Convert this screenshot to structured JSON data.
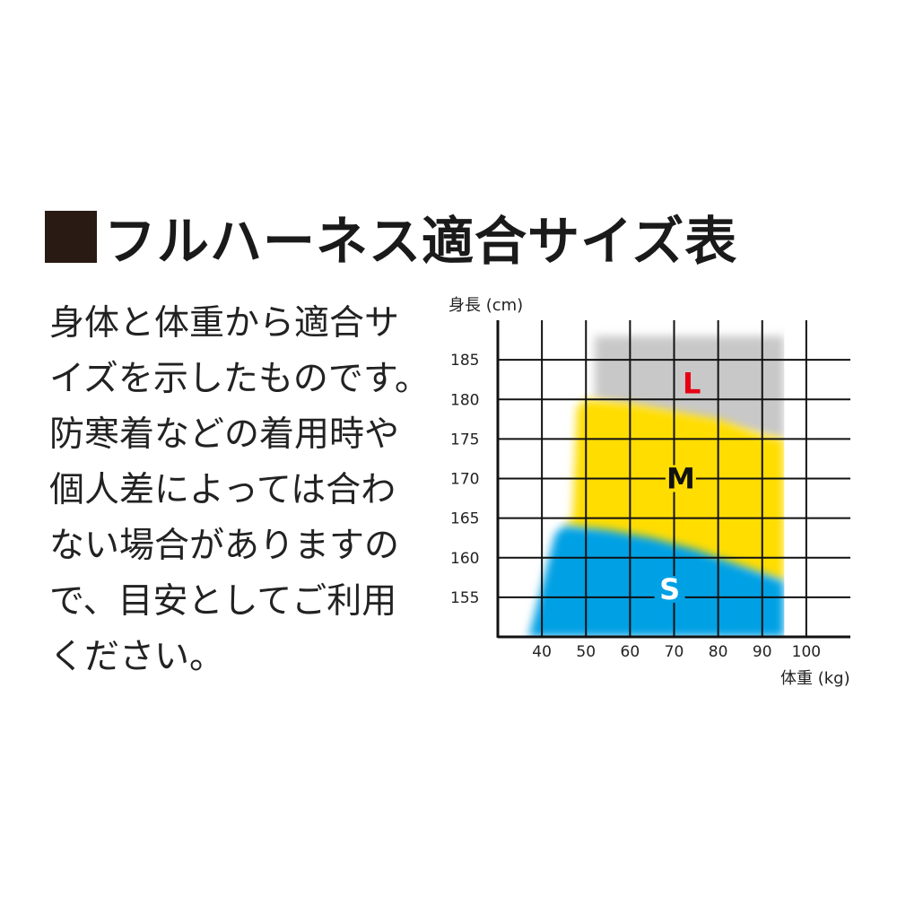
{
  "title": "フルハーネス適合サイズ表",
  "description_lines": [
    "身体と体重から適合サ",
    "イズを示したものです。",
    "防寒着などの着用時や",
    "個人差によっては合わ",
    "ない場合がありますの",
    "で、目安としてご利用",
    "ください。"
  ],
  "chart_data": {
    "type": "area",
    "xlabel": "体重 (kg)",
    "ylabel": "身長 (cm)",
    "xlim": [
      30,
      110
    ],
    "ylim": [
      150,
      190
    ],
    "x_ticks": [
      "40",
      "50",
      "60",
      "70",
      "80",
      "90",
      "100"
    ],
    "y_ticks": [
      "155",
      "160",
      "165",
      "170",
      "175",
      "180",
      "185"
    ],
    "grid": true,
    "regions": [
      {
        "name": "L",
        "color": "#c8c8c8",
        "label_color": "#e60012",
        "polygon": [
          [
            52,
            188
          ],
          [
            95,
            188
          ],
          [
            95,
            175
          ],
          [
            52,
            180
          ]
        ]
      },
      {
        "name": "M",
        "color": "#ffdd00",
        "label_color": "#111111",
        "polygon": [
          [
            47,
            165
          ],
          [
            48,
            179
          ],
          [
            50,
            180
          ],
          [
            60,
            179.5
          ],
          [
            70,
            178.5
          ],
          [
            80,
            177.5
          ],
          [
            90,
            175.5
          ],
          [
            95,
            175
          ],
          [
            95,
            157
          ],
          [
            45,
            164
          ]
        ]
      },
      {
        "name": "S",
        "color": "#00a0e4",
        "label_color": "#ffffff",
        "polygon": [
          [
            37,
            150
          ],
          [
            38,
            152
          ],
          [
            43,
            163
          ],
          [
            45,
            164
          ],
          [
            55,
            163.5
          ],
          [
            65,
            162.5
          ],
          [
            75,
            161
          ],
          [
            85,
            159
          ],
          [
            90,
            158
          ],
          [
            95,
            157
          ],
          [
            95,
            150
          ]
        ]
      }
    ],
    "labels": [
      {
        "text": "L",
        "x": 74,
        "y": 182
      },
      {
        "text": "M",
        "x": 71.5,
        "y": 170
      },
      {
        "text": "S",
        "x": 69,
        "y": 156
      }
    ]
  }
}
